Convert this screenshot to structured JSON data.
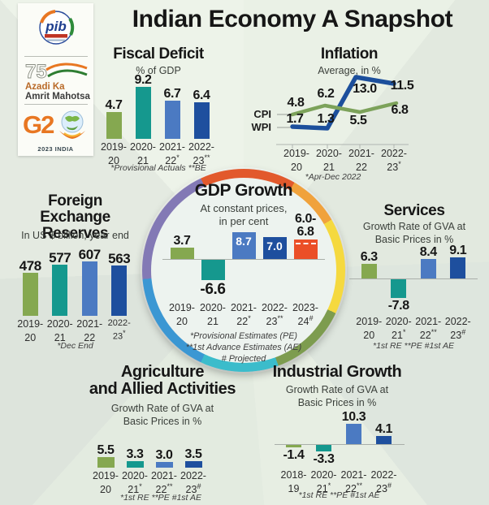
{
  "header": {
    "title": "Indian Economy A Snapshot"
  },
  "sidebar": {
    "pib_text": "pib",
    "azadi_75": "75",
    "azadi_line1": "Azadi Ka",
    "azadi_line2": "Amrit Mahotsav",
    "g20_text": "G2",
    "g20_caption": "2023 INDIA"
  },
  "palette": {
    "green": "#85a850",
    "teal": "#15988e",
    "blue": "#4b7ac2",
    "darkblue": "#1e4f9e",
    "red": "#eb4f27",
    "cpi_line": "#7ca25a",
    "wpi_line": "#1c4f9c"
  },
  "chart_data": [
    {
      "id": "fiscal_deficit",
      "type": "bar",
      "title": "Fiscal Deficit",
      "subtitle": "% of GDP",
      "values": [
        4.7,
        9.2,
        6.7,
        6.4
      ],
      "labels": [
        "4.7",
        "9.2",
        "6.7",
        "6.4"
      ],
      "categories": [
        {
          "l1": "2019-",
          "l2": "20",
          "sup": ""
        },
        {
          "l1": "2020-",
          "l2": "21",
          "sup": ""
        },
        {
          "l1": "2021-",
          "l2": "22",
          "sup": "*"
        },
        {
          "l1": "2022-",
          "l2": "23",
          "sup": "**"
        }
      ],
      "footnote": "*Provisional Actuals **BE"
    },
    {
      "id": "inflation",
      "type": "line",
      "title": "Inflation",
      "subtitle": "Average, in %",
      "series": [
        {
          "name": "CPI",
          "values": [
            4.8,
            6.2,
            5.5,
            6.8
          ],
          "labels": [
            "4.8",
            "6.2",
            "5.5",
            "6.8"
          ],
          "color": "#7ca25a"
        },
        {
          "name": "WPI",
          "values": [
            1.7,
            1.3,
            13.0,
            11.5
          ],
          "labels": [
            "1.7",
            "1.3",
            "13.0",
            "11.5"
          ],
          "color": "#1c4f9c"
        }
      ],
      "categories": [
        {
          "l1": "2019-",
          "l2": "20",
          "sup": ""
        },
        {
          "l1": "2020-",
          "l2": "21",
          "sup": ""
        },
        {
          "l1": "2021-",
          "l2": "22",
          "sup": ""
        },
        {
          "l1": "2022-",
          "l2": "23",
          "sup": "*"
        }
      ],
      "footnote": "*Apr-Dec 2022"
    },
    {
      "id": "gdp_growth",
      "type": "bar",
      "title": "GDP Growth",
      "subtitle_l1": "At constant prices,",
      "subtitle_l2": "in per cent",
      "values": [
        3.7,
        -6.6,
        8.7,
        7.0,
        6.8
      ],
      "labels": [
        "3.7",
        "-6.6",
        "8.7",
        "7.0"
      ],
      "range_label_l1": "6.0-",
      "range_label_l2": "6.8",
      "categories": [
        {
          "l1": "2019-",
          "l2": "20",
          "sup": ""
        },
        {
          "l1": "2020-",
          "l2": "21",
          "sup": ""
        },
        {
          "l1": "2021-",
          "l2": "22",
          "sup": "*"
        },
        {
          "l1": "2022-",
          "l2": "23",
          "sup": "**"
        },
        {
          "l1": "2023-",
          "l2": "24",
          "sup": "#"
        }
      ],
      "footnotes": [
        "*Provisional Estimates (PE)",
        "**1st Advance Estimates (AE)",
        "# Projected"
      ]
    },
    {
      "id": "services",
      "type": "bar",
      "title": "Services",
      "subtitle_l1": "Growth Rate of GVA at",
      "subtitle_l2": "Basic Prices in %",
      "values": [
        6.3,
        -7.8,
        8.4,
        9.1
      ],
      "labels": [
        "6.3",
        "-7.8",
        "8.4",
        "9.1"
      ],
      "categories": [
        {
          "l1": "2019-",
          "l2": "20",
          "sup": ""
        },
        {
          "l1": "2020-",
          "l2": "21",
          "sup": "*"
        },
        {
          "l1": "2021-",
          "l2": "22",
          "sup": "**"
        },
        {
          "l1": "2022-",
          "l2": "23",
          "sup": "#"
        }
      ],
      "footnote": "*1st RE  **PE  #1st AE"
    },
    {
      "id": "forex_reserves",
      "type": "bar",
      "title_l1": "Foreign",
      "title_l2": "Exchange Reserves",
      "subtitle": "In US $ billion, year end",
      "values": [
        478,
        577,
        607,
        563
      ],
      "labels": [
        "478",
        "577",
        "607",
        "563"
      ],
      "categories": [
        {
          "l1": "2019-",
          "l2": "20",
          "sup": ""
        },
        {
          "l1": "2020-",
          "l2": "21",
          "sup": ""
        },
        {
          "l1": "2021-",
          "l2": "22",
          "sup": ""
        },
        {
          "l1": "2022-",
          "l2": "23",
          "sup": "*"
        }
      ],
      "footnote": "*Dec End"
    },
    {
      "id": "agriculture",
      "type": "bar",
      "title_l1": "Agriculture",
      "title_l2": "and Allied Activities",
      "subtitle_l1": "Growth Rate of GVA at",
      "subtitle_l2": "Basic Prices in %",
      "values": [
        5.5,
        3.3,
        3.0,
        3.5
      ],
      "labels": [
        "5.5",
        "3.3",
        "3.0",
        "3.5"
      ],
      "categories": [
        {
          "l1": "2019-",
          "l2": "20",
          "sup": ""
        },
        {
          "l1": "2020-",
          "l2": "21",
          "sup": "*"
        },
        {
          "l1": "2021-",
          "l2": "22",
          "sup": "**"
        },
        {
          "l1": "2022-",
          "l2": "23",
          "sup": "#"
        }
      ],
      "footnote": "*1st RE  **PE  #1st AE"
    },
    {
      "id": "industrial_growth",
      "type": "bar",
      "title": "Industrial Growth",
      "subtitle_l1": "Growth Rate of GVA at",
      "subtitle_l2": "Basic Prices in %",
      "values": [
        -1.4,
        -3.3,
        10.3,
        4.1
      ],
      "labels": [
        "-1.4",
        "-3.3",
        "10.3",
        "4.1"
      ],
      "categories": [
        {
          "l1": "2018-",
          "l2": "19",
          "sup": ""
        },
        {
          "l1": "2020-",
          "l2": "21",
          "sup": "*"
        },
        {
          "l1": "2021-",
          "l2": "22",
          "sup": "**"
        },
        {
          "l1": "2022-",
          "l2": "23",
          "sup": "#"
        }
      ],
      "footnote": "*1st RE  **PE  #1st AE"
    }
  ]
}
